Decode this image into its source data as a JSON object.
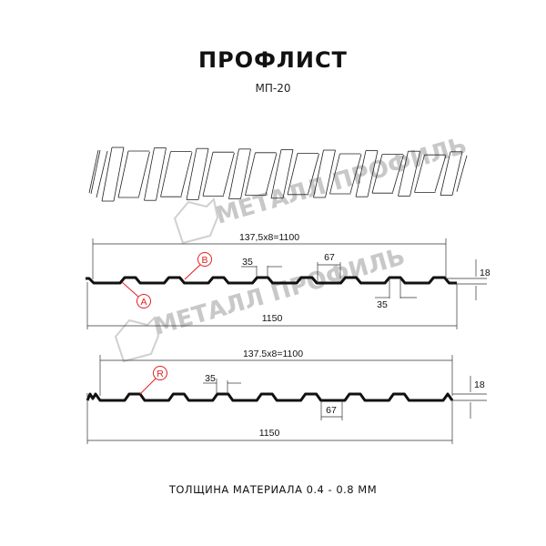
{
  "header": {
    "title": "ПРОФЛИСТ",
    "subtitle": "МП-20"
  },
  "watermark": {
    "text": "МЕТАЛЛ ПРОФИЛЬ",
    "color": "#c8c8c8"
  },
  "profile_top": {
    "pitch_label": "137,5x8=1100",
    "width_label": "1150",
    "height_label": "18",
    "rib_top_label": "35",
    "rib_bottom_label": "35",
    "valley_label": "67",
    "callouts": [
      "A",
      "B"
    ]
  },
  "profile_bottom": {
    "pitch_label": "137.5x8=1100",
    "width_label": "1150",
    "height_label": "18",
    "rib_top_label": "35",
    "valley_label": "67",
    "callouts": [
      "R"
    ]
  },
  "footer": {
    "thickness_text": "ТОЛЩИНА МАТЕРИАЛА 0.4 - 0.8 ММ"
  },
  "colors": {
    "callout": "#e02020",
    "line": "#111111"
  }
}
